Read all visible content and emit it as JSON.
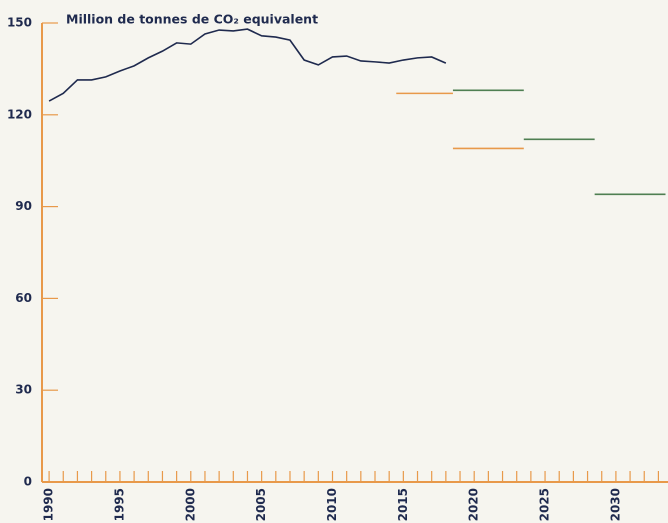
{
  "chart_data": {
    "type": "line",
    "title": "Million de tonnes de CO₂ equivalent",
    "x": [
      1990,
      1991,
      1992,
      1993,
      1994,
      1995,
      1996,
      1997,
      1998,
      1999,
      2000,
      2001,
      2002,
      2003,
      2004,
      2005,
      2006,
      2007,
      2008,
      2009,
      2010,
      2011,
      2012,
      2013,
      2014,
      2015,
      2016,
      2017,
      2018
    ],
    "series": [
      {
        "color": "#1f2a4e",
        "values": [
          124.5,
          127,
          131.4,
          131.4,
          132.4,
          134.3,
          136,
          138.6,
          140.8,
          143.5,
          143.1,
          146.4,
          147.7,
          147.4,
          148,
          145.8,
          145.4,
          144.4,
          137.9,
          136.3,
          138.9,
          139.2,
          137.6,
          137.3,
          136.9,
          137.9,
          138.6,
          138.9,
          136.9
        ]
      }
    ],
    "targets": [
      {
        "color": "#e8994a",
        "x": [
          2014.5,
          2018.5
        ],
        "value": 127
      },
      {
        "color": "#4f7f52",
        "x": [
          2018.5,
          2023.5
        ],
        "value": 128
      },
      {
        "color": "#e8994a",
        "x": [
          2018.5,
          2023.5
        ],
        "value": 109
      },
      {
        "color": "#4f7f52",
        "x": [
          2023.5,
          2028.5
        ],
        "value": 112
      },
      {
        "color": "#4f7f52",
        "x": [
          2028.5,
          2033.5
        ],
        "value": 94
      }
    ],
    "axis_color": "#e8994a",
    "xlim": [
      1989.5,
      2033.5
    ],
    "ylim": [
      0,
      150
    ],
    "yticks": [
      0,
      30,
      60,
      90,
      120,
      150
    ],
    "xticks": [
      1990,
      1995,
      2000,
      2005,
      2010,
      2015,
      2020,
      2025,
      2030
    ],
    "xminor_ticks": [
      1990,
      1991,
      1992,
      1993,
      1994,
      1995,
      1996,
      1997,
      1998,
      1999,
      2000,
      2001,
      2002,
      2003,
      2004,
      2005,
      2006,
      2007,
      2008,
      2009,
      2010,
      2011,
      2012,
      2013,
      2014,
      2015,
      2016,
      2017,
      2018,
      2019,
      2020,
      2021,
      2022,
      2023,
      2024,
      2025,
      2026,
      2027,
      2028,
      2029,
      2030,
      2031,
      2032,
      2033
    ]
  }
}
